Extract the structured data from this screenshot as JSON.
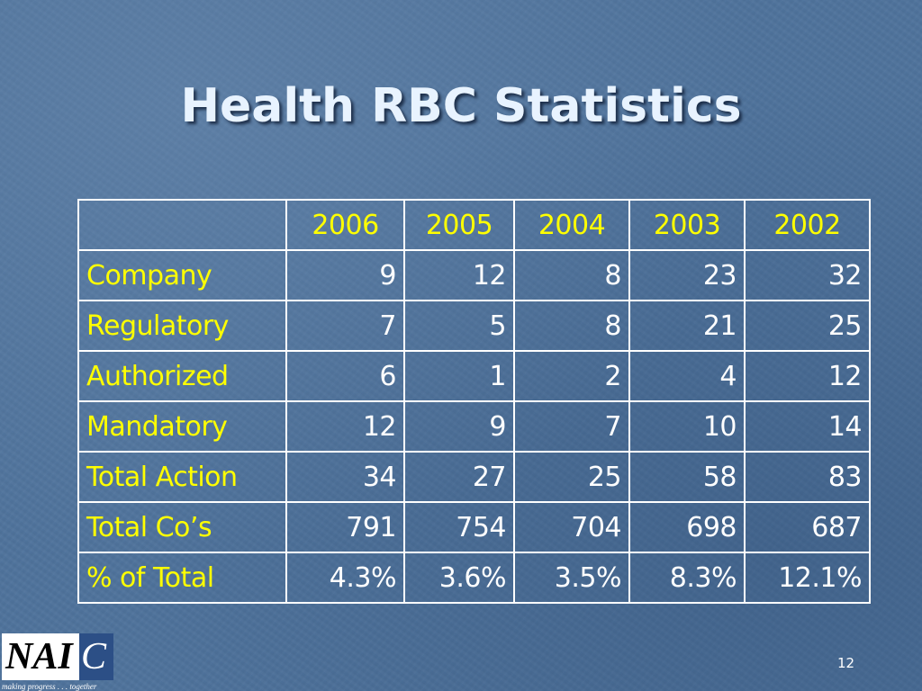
{
  "slide": {
    "title": "Health RBC Statistics",
    "page_number": "12"
  },
  "table": {
    "columns": [
      "",
      "2006",
      "2005",
      "2004",
      "2003",
      "2002"
    ],
    "rows": [
      {
        "label": "Company",
        "values": [
          "9",
          "12",
          "8",
          "23",
          "32"
        ]
      },
      {
        "label": "Regulatory",
        "values": [
          "7",
          "5",
          "8",
          "21",
          "25"
        ]
      },
      {
        "label": "Authorized",
        "values": [
          "6",
          "1",
          "2",
          "4",
          "12"
        ]
      },
      {
        "label": "Mandatory",
        "values": [
          "12",
          "9",
          "7",
          "10",
          "14"
        ]
      },
      {
        "label": "Total Action",
        "values": [
          "34",
          "27",
          "25",
          "58",
          "83"
        ]
      },
      {
        "label": "Total Co’s",
        "values": [
          "791",
          "754",
          "704",
          "698",
          "687"
        ]
      },
      {
        "label": "% of Total",
        "values": [
          "4.3%",
          "3.6%",
          "3.5%",
          "8.3%",
          "12.1%"
        ]
      }
    ]
  },
  "logo": {
    "text_main": "NAI",
    "text_accent": "C",
    "tagline": "making progress . . . together"
  },
  "colors": {
    "background": "#4f739c",
    "title": "#e8f3ff",
    "header_text": "#ffff00",
    "row_label_text": "#ffff00",
    "value_text": "#ffffff",
    "grid_lines": "#ffffff"
  }
}
